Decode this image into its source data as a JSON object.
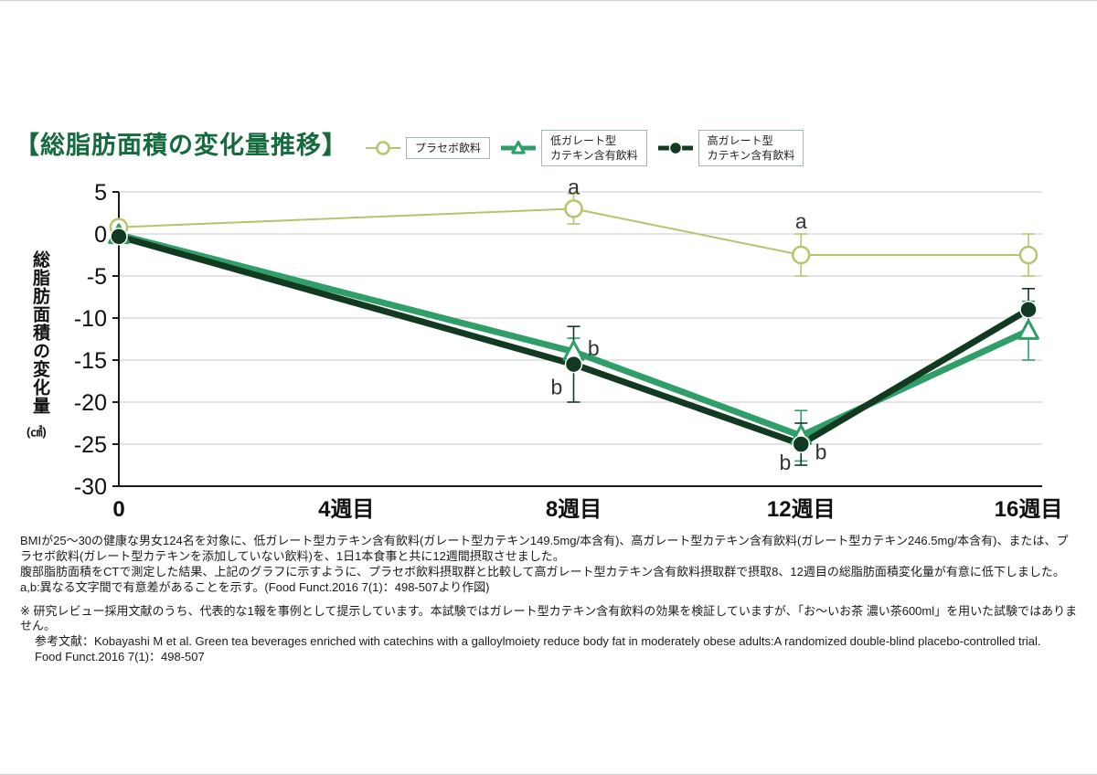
{
  "page": {
    "title": "【総脂肪面積の変化量推移】"
  },
  "legend": {
    "items": [
      {
        "label": "プラセボ飲料",
        "color": "#b5c56e",
        "marker": "circle-open"
      },
      {
        "label": "低ガレート型\nカテキン含有飲料",
        "color": "#2f9e68",
        "marker": "triangle-open"
      },
      {
        "label": "高ガレート型\nカテキン含有飲料",
        "color": "#123a21",
        "marker": "circle-filled"
      }
    ]
  },
  "chart_data": {
    "type": "line",
    "title": "総脂肪面積の変化量推移",
    "ylabel": "総脂肪面積の変化量",
    "y_unit": "(㎠)",
    "ylim": [
      -30,
      5
    ],
    "yticks": [
      5,
      0,
      -5,
      -10,
      -15,
      -20,
      -25,
      -30
    ],
    "x": [
      0,
      8,
      12,
      16
    ],
    "x_tick_values": [
      0,
      4,
      8,
      12,
      16
    ],
    "x_tick_labels": [
      "0",
      "4週目",
      "8週目",
      "12週目",
      "16週目"
    ],
    "grid": true,
    "legend_position": "top",
    "series": [
      {
        "name": "プラセボ飲料",
        "color": "#b5c56e",
        "marker": "circle-open",
        "line_width": 2,
        "values": [
          0.8,
          3,
          -2.5,
          -2.5
        ],
        "errors": [
          0.8,
          1.8,
          2.5,
          2.5
        ]
      },
      {
        "name": "低ガレート型カテキン含有飲料",
        "color": "#2f9e68",
        "marker": "triangle-open",
        "line_width": 7,
        "values": [
          -0.1,
          -14,
          -24,
          -11.5
        ],
        "errors": [
          0.4,
          1.6,
          3,
          3.5
        ]
      },
      {
        "name": "高ガレート型カテキン含有飲料",
        "color": "#123a21",
        "marker": "circle-filled",
        "line_width": 7,
        "values": [
          -0.3,
          -15.5,
          -25,
          -9
        ],
        "errors": [
          0.4,
          4.5,
          2.5,
          2.5
        ]
      }
    ],
    "annotations": [
      {
        "text": "a",
        "x": 8,
        "y": 5.6
      },
      {
        "text": "a",
        "x": 12,
        "y": 1.5
      },
      {
        "text": "b",
        "x": 8.35,
        "y": -13.6
      },
      {
        "text": "b",
        "x": 7.7,
        "y": -18.2
      },
      {
        "text": "b",
        "x": 11.72,
        "y": -27.2
      },
      {
        "text": "b",
        "x": 12.35,
        "y": -25.9
      }
    ]
  },
  "footnotes": {
    "block1": [
      "BMIが25〜30の健康な男女124名を対象に、低ガレート型カテキン含有飲料(ガレート型カテキン149.5mg/本含有)、高ガレート型カテキン含有飲料(ガレート型カテキン246.5mg/本含有)、または、プラセボ飲料(ガレート型カテキンを添加していない飲料)を、1日1本食事と共に12週間摂取させました。",
      "腹部脂肪面積をCTで測定した結果、上記のグラフに示すように、プラセボ飲料摂取群と比較して高ガレート型カテキン含有飲料摂取群で摂取8、12週目の総脂肪面積変化量が有意に低下しました。a,b:異なる文字間で有意差があることを示す。(Food Funct.2016 7(1)：498-507より作図)"
    ],
    "block2": [
      "※ 研究レビュー採用文献のうち、代表的な1報を事例として提示しています。本試験ではガレート型カテキン含有飲料の効果を検証していますが、「お〜いお茶 濃い茶600ml」を用いた試験ではありません。",
      "参考文献：Kobayashi M et al. Green tea beverages enriched with catechins with a galloylmoiety reduce body fat in moderately obese adults:A randomized double-blind placebo-controlled trial.",
      "Food Funct.2016 7(1)：498-507"
    ]
  }
}
